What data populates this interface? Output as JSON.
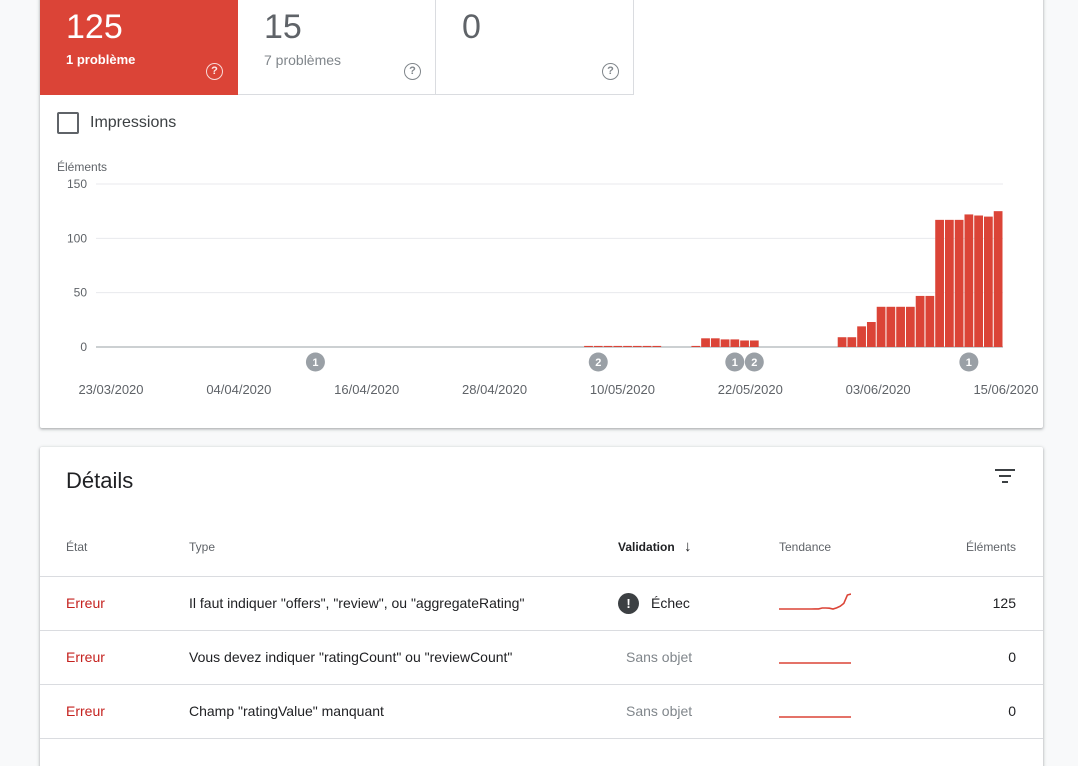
{
  "metrics": [
    {
      "value": "125",
      "label": "1 problème",
      "help": "?"
    },
    {
      "value": "15",
      "label": "7 problèmes",
      "help": "?"
    },
    {
      "value": "0",
      "label": "",
      "help": "?"
    }
  ],
  "impressions": {
    "label": "Impressions",
    "checked": false
  },
  "chart_data": {
    "type": "bar",
    "ylabel": "Éléments",
    "ylim": [
      0,
      150
    ],
    "yticks": [
      0,
      50,
      100,
      150
    ],
    "x_tick_labels": [
      "23/03/2020",
      "04/04/2020",
      "16/04/2020",
      "28/04/2020",
      "10/05/2020",
      "22/05/2020",
      "03/06/2020",
      "15/06/2020"
    ],
    "color": "#db4437",
    "series": [
      {
        "values": [
          0,
          0,
          0,
          0,
          0,
          0,
          0,
          0,
          0,
          0,
          0,
          0,
          0,
          0,
          0,
          0,
          0,
          0,
          0,
          0,
          0,
          0,
          0,
          0,
          0,
          0,
          0,
          0,
          0,
          0,
          0,
          0,
          0,
          0,
          0,
          0,
          0,
          0,
          0,
          0,
          0,
          0,
          0,
          0,
          0,
          0,
          0,
          0,
          0,
          0,
          1,
          1,
          1,
          1,
          1,
          1,
          1,
          1,
          0,
          0,
          0,
          1,
          8,
          8,
          7,
          7,
          6,
          6,
          0,
          0,
          0,
          0,
          0,
          0,
          0,
          0,
          9,
          9,
          19,
          23,
          37,
          37,
          37,
          37,
          47,
          47,
          117,
          117,
          117,
          122,
          121,
          120,
          125
        ]
      }
    ],
    "annotations": [
      {
        "label": "1",
        "index": 22
      },
      {
        "label": "2",
        "index": 51
      },
      {
        "label": "1",
        "index": 65
      },
      {
        "label": "2",
        "index": 67
      },
      {
        "label": "1",
        "index": 89
      }
    ]
  },
  "details": {
    "title": "Détails",
    "columns": {
      "state": "État",
      "type": "Type",
      "validation": "Validation",
      "sort_arrow": "↓",
      "trend": "Tendance",
      "count": "Éléments"
    },
    "rows": [
      {
        "state": "Erreur",
        "type": "Il faut indiquer \"offers\", \"review\", ou \"aggregateRating\"",
        "validation": "Échec",
        "validation_icon": "!",
        "trend": [
          0,
          0,
          0,
          0,
          0,
          0,
          0,
          0,
          0,
          0,
          1,
          1,
          8,
          8,
          7,
          0,
          9,
          23,
          47,
          117,
          125
        ],
        "count": "125"
      },
      {
        "state": "Erreur",
        "type": "Vous devez indiquer \"ratingCount\" ou \"reviewCount\"",
        "validation": "Sans objet",
        "trend": [
          0,
          0,
          0,
          0,
          0,
          0,
          0,
          0,
          0,
          0,
          0,
          0,
          0,
          0,
          0,
          0,
          0,
          0,
          0,
          0,
          0
        ],
        "count": "0"
      },
      {
        "state": "Erreur",
        "type": "Champ \"ratingValue\" manquant",
        "validation": "Sans objet",
        "trend": [
          0,
          0,
          0,
          0,
          0,
          0,
          0,
          0,
          0,
          0,
          0,
          0,
          0,
          0,
          0,
          0,
          0,
          0,
          0,
          0,
          0
        ],
        "count": "0"
      }
    ]
  },
  "colors": {
    "accent": "#db4437",
    "error_text": "#c5221f"
  }
}
